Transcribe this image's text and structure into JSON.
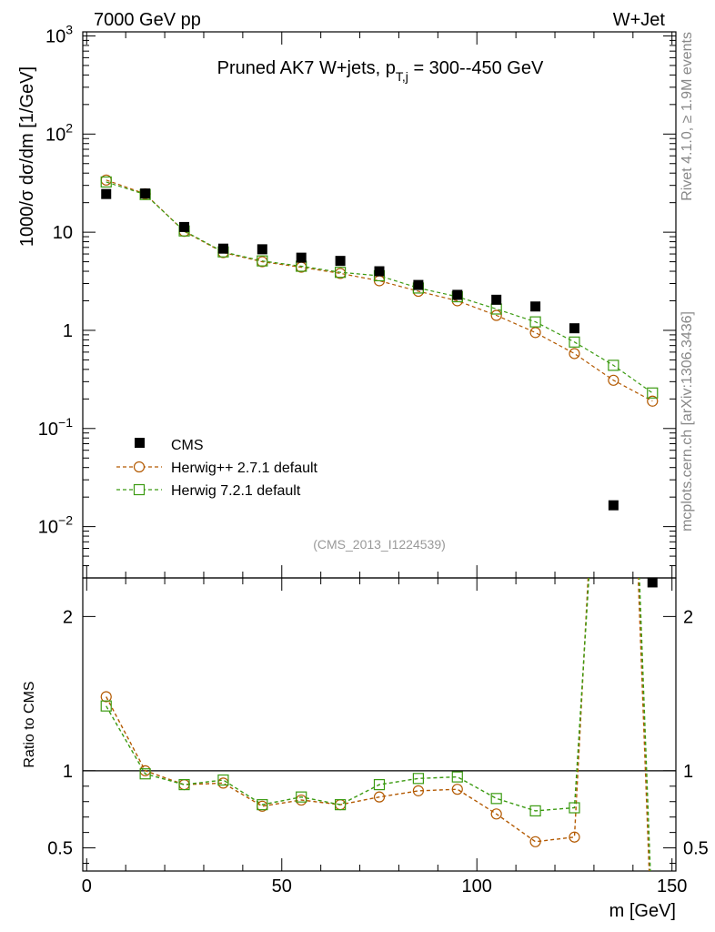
{
  "header": {
    "left": "7000 GeV pp",
    "right": "W+Jet"
  },
  "side_text": {
    "top": "Rivet 4.1.0, ≥ 1.9M events",
    "bottom": "mcplots.cern.ch [arXiv:1306.3436]"
  },
  "analysis_id": "(CMS_2013_I1224539)",
  "colors": {
    "cms": "#000000",
    "herwigpp": "#b35900",
    "herwig7": "#3a9a10",
    "axis": "#000000",
    "side": "#888888"
  },
  "chart_data": [
    {
      "type": "scatter",
      "panel": "main",
      "title": "Pruned AK7 W+jets, p_T,j = 300--450 GeV",
      "title_parts": {
        "pre": "Pruned AK7 W+jets, p",
        "sub": "T,j",
        "post": " = 300--450 GeV"
      },
      "ylabel": "1000/σ  dσ/dm [1/GeV]",
      "xlabel": "",
      "yscale": "log",
      "ylim": [
        0.003,
        1100
      ],
      "xlim": [
        -1,
        151
      ],
      "ytick_labels": [
        {
          "value": 1000,
          "base": "10",
          "exp": "3"
        },
        {
          "value": 100,
          "base": "10",
          "exp": "2"
        },
        {
          "value": 10,
          "base": "10",
          "exp": ""
        },
        {
          "value": 1,
          "base": "1",
          "exp": ""
        },
        {
          "value": 0.1,
          "base": "10",
          "exp": "−1"
        },
        {
          "value": 0.01,
          "base": "10",
          "exp": "−2"
        }
      ],
      "legend": {
        "position": "bottom-left",
        "entries": [
          "CMS",
          "Herwig++ 2.7.1 default",
          "Herwig 7.2.1 default"
        ]
      },
      "x": [
        5,
        15,
        25,
        35,
        45,
        55,
        65,
        75,
        85,
        95,
        105,
        115,
        125,
        135,
        145
      ],
      "series": [
        {
          "name": "CMS",
          "marker": "filled-square",
          "values": [
            24.5,
            24.8,
            11.3,
            6.8,
            6.7,
            5.5,
            5.1,
            4.0,
            2.9,
            2.3,
            2.05,
            1.75,
            1.05,
            0.0165,
            0.0027
          ]
        },
        {
          "name": "Herwig++ 2.7.1 default",
          "marker": "open-circle",
          "values": [
            34.0,
            24.6,
            10.2,
            6.2,
            5.0,
            4.4,
            3.8,
            3.2,
            2.5,
            2.0,
            1.42,
            0.95,
            0.58,
            0.31,
            0.19
          ]
        },
        {
          "name": "Herwig 7.2.1 default",
          "marker": "open-square",
          "values": [
            32.5,
            24.2,
            10.3,
            6.3,
            5.1,
            4.5,
            3.9,
            3.6,
            2.7,
            2.2,
            1.65,
            1.22,
            0.76,
            0.44,
            0.23
          ]
        }
      ]
    },
    {
      "type": "line",
      "panel": "ratio",
      "ylabel": "Ratio to CMS",
      "xlabel": "m [GeV]",
      "ylim": [
        0.35,
        2.25
      ],
      "xlim": [
        -1,
        151
      ],
      "yticks": [
        0.5,
        1,
        2
      ],
      "ytick_labels": [
        "0.5",
        "1",
        "2"
      ],
      "xticks": [
        0,
        50,
        100,
        150
      ],
      "xtick_labels": [
        "0",
        "50",
        "100",
        "150"
      ],
      "reference_line": 1,
      "x": [
        5,
        15,
        25,
        35,
        45,
        55,
        65,
        75,
        85,
        95,
        105,
        115,
        125
      ],
      "series": [
        {
          "name": "Herwig++ 2.7.1 default",
          "values": [
            1.48,
            1.0,
            0.91,
            0.92,
            0.77,
            0.81,
            0.78,
            0.83,
            0.87,
            0.88,
            0.72,
            0.54,
            0.57
          ]
        },
        {
          "name": "Herwig 7.2.1 default",
          "values": [
            1.42,
            0.98,
            0.91,
            0.94,
            0.78,
            0.83,
            0.78,
            0.91,
            0.95,
            0.96,
            0.82,
            0.74,
            0.76
          ]
        }
      ],
      "offscale_x": [
        129,
        141,
        144.5
      ]
    }
  ]
}
